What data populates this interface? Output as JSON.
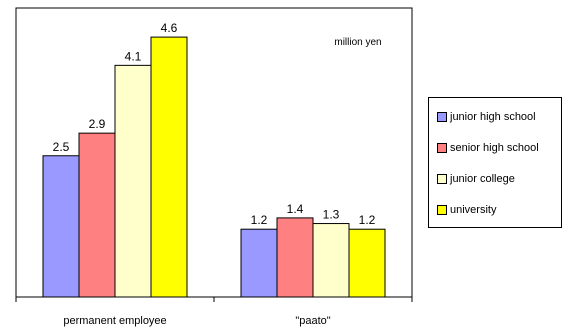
{
  "chart_data": {
    "type": "bar",
    "categories": [
      "permanent employee",
      "\"paato\""
    ],
    "series": [
      {
        "name": "junior high school",
        "values": [
          2.5,
          1.2
        ],
        "color": "#9999ff"
      },
      {
        "name": "senior high school",
        "values": [
          2.9,
          1.4
        ],
        "color": "#ff8080"
      },
      {
        "name": "junior college",
        "values": [
          4.1,
          1.3
        ],
        "color": "#ffffcc"
      },
      {
        "name": "university",
        "values": [
          4.6,
          1.2
        ],
        "color": "#ffff00"
      }
    ],
    "annotation": "million yen",
    "ylim": [
      0,
      5
    ],
    "grid": false,
    "legend": "right"
  }
}
